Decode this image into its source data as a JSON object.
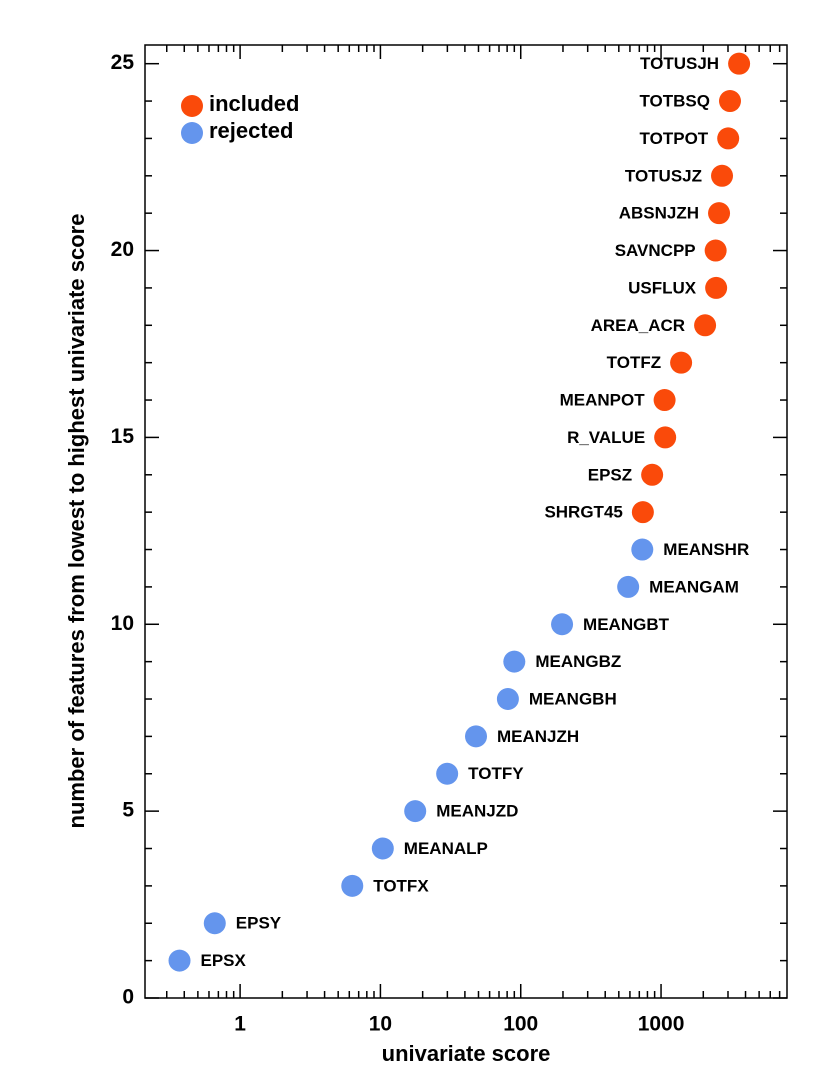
{
  "chart_data": {
    "type": "scatter",
    "x_label": "univariate score",
    "y_label": "number of features from lowest to highest univariate score",
    "x_log": true,
    "x_minor_ticks": true,
    "y_minor_step": 1,
    "legend_position": "upper-left",
    "xlim": [
      0.21,
      7900
    ],
    "xticks": [
      1,
      10,
      100,
      1000
    ],
    "ylim": [
      0,
      25.5
    ],
    "yticks": [
      0,
      5,
      10,
      15,
      20,
      25
    ],
    "series": [
      {
        "name": "included",
        "color": "#fa4a0a",
        "label_side": "left",
        "x": [
          742,
          864,
          1070,
          1060,
          1390,
          2060,
          2470,
          2450,
          2590,
          2720,
          3010,
          3100,
          3600
        ],
        "values": [
          13,
          14,
          15,
          16,
          17,
          18,
          19,
          20,
          21,
          22,
          23,
          24,
          25
        ],
        "labels": [
          "SHRGT45",
          "EPSZ",
          "R_VALUE",
          "MEANPOT",
          "TOTFZ",
          "AREA_ACR",
          "USFLUX",
          "SAVNCPP",
          "ABSNJZH",
          "TOTUSJZ",
          "TOTPOT",
          "TOTBSQ",
          "TOTUSJH"
        ]
      },
      {
        "name": "rejected",
        "color": "#6495ed",
        "label_side": "right",
        "x": [
          0.37,
          0.66,
          6.3,
          10.4,
          17.7,
          29.9,
          48,
          81,
          90,
          197,
          583,
          735
        ],
        "values": [
          1,
          2,
          3,
          4,
          5,
          6,
          7,
          8,
          9,
          10,
          11,
          12
        ],
        "labels": [
          "EPSX",
          "EPSY",
          "TOTFX",
          "MEANALP",
          "MEANJZD",
          "TOTFY",
          "MEANJZH",
          "MEANGBH",
          "MEANGBZ",
          "MEANGBT",
          "MEANGAM",
          "MEANSHR"
        ]
      }
    ]
  }
}
